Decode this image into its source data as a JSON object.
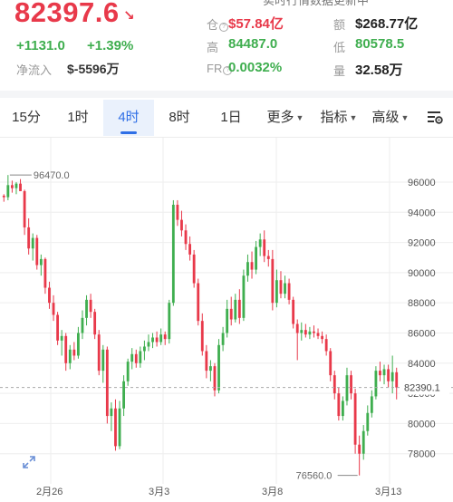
{
  "header": {
    "price": "82397.6",
    "price_arrow": "↘",
    "change_abs": "+1131.0",
    "change_pct": "+1.39%",
    "net_flow_label": "净流入",
    "net_flow_value": "$-5596万",
    "top_cut_text": "实时行情数据更新中",
    "stats": [
      {
        "label": "仓",
        "value": "$57.84亿",
        "color": "red"
      },
      {
        "label": "额",
        "value": "$268.77亿",
        "color": "dark"
      },
      {
        "label": "高",
        "value": "84487.0",
        "color": "green"
      },
      {
        "label": "低",
        "value": "80578.5",
        "color": "green"
      },
      {
        "label": "FR",
        "value": "0.0032%",
        "color": "green"
      },
      {
        "label": "量",
        "value": "32.58万",
        "color": "dark"
      }
    ]
  },
  "tabs": [
    {
      "label": "15分",
      "active": false
    },
    {
      "label": "1时",
      "active": false
    },
    {
      "label": "4时",
      "active": true
    },
    {
      "label": "8时",
      "active": false
    },
    {
      "label": "1日",
      "active": false
    },
    {
      "label": "更多",
      "active": false,
      "dropdown": true
    },
    {
      "label": "指标",
      "active": false,
      "dropdown": true
    },
    {
      "label": "高级",
      "active": false,
      "dropdown": true
    }
  ],
  "settings_icon": "chart-settings-icon",
  "expand_icon": "expand-icon",
  "colors": {
    "up": "#3fae4f",
    "down": "#e8394a",
    "accent": "#2f6fe6",
    "grid": "#eeeeee"
  },
  "chart_data": {
    "type": "candlestick",
    "y_ticks": [
      "96000",
      "94000",
      "92000",
      "90000",
      "88000",
      "86000",
      "84000",
      "82000",
      "80000",
      "78000"
    ],
    "x_labels": [
      "2月26",
      "3月3",
      "3月8",
      "3月13"
    ],
    "ylim": [
      76000,
      97500
    ],
    "current_price_label": "82390.1",
    "current_price": 82390.1,
    "high_marker": {
      "label": "96470.0",
      "value": 96470.0
    },
    "low_marker": {
      "label": "76560.0",
      "value": 76560.0
    },
    "candles": [
      [
        95100,
        95200,
        94700,
        95000
      ],
      [
        95000,
        96470,
        94800,
        95800
      ],
      [
        95800,
        96100,
        95300,
        95600
      ],
      [
        95600,
        96000,
        95200,
        95900
      ],
      [
        95900,
        96200,
        95500,
        95400
      ],
      [
        95400,
        95500,
        92500,
        93000
      ],
      [
        93000,
        93600,
        91200,
        91600
      ],
      [
        91600,
        92600,
        90800,
        92300
      ],
      [
        92300,
        92500,
        90200,
        90500
      ],
      [
        90500,
        91200,
        89800,
        90900
      ],
      [
        90900,
        91000,
        88600,
        89000
      ],
      [
        89000,
        89400,
        87600,
        88000
      ],
      [
        88000,
        88500,
        86800,
        87200
      ],
      [
        87200,
        87400,
        85200,
        85500
      ],
      [
        85500,
        86200,
        84500,
        85800
      ],
      [
        85800,
        86000,
        83500,
        84000
      ],
      [
        84000,
        85200,
        83600,
        84900
      ],
      [
        84900,
        85400,
        84200,
        84500
      ],
      [
        84500,
        86400,
        84300,
        86000
      ],
      [
        86000,
        87500,
        85600,
        87000
      ],
      [
        87000,
        88500,
        86500,
        88200
      ],
      [
        88200,
        88600,
        87000,
        87400
      ],
      [
        87400,
        87600,
        85600,
        85900
      ],
      [
        85900,
        86200,
        83200,
        83500
      ],
      [
        83500,
        85200,
        82700,
        84900
      ],
      [
        84900,
        85100,
        80000,
        80500
      ],
      [
        80500,
        81400,
        79500,
        81000
      ],
      [
        81000,
        81600,
        78200,
        78500
      ],
      [
        78500,
        81500,
        78300,
        81000
      ],
      [
        81000,
        83200,
        80500,
        82800
      ],
      [
        82800,
        84300,
        82500,
        84100
      ],
      [
        84100,
        85000,
        83600,
        84600
      ],
      [
        84600,
        84900,
        83700,
        84000
      ],
      [
        84000,
        85100,
        83700,
        84800
      ],
      [
        84800,
        85500,
        84200,
        85100
      ],
      [
        85100,
        85900,
        84800,
        85400
      ],
      [
        85400,
        86000,
        85000,
        85700
      ],
      [
        85700,
        86100,
        85100,
        85400
      ],
      [
        85400,
        86300,
        85200,
        85900
      ],
      [
        85900,
        86100,
        85200,
        85600
      ],
      [
        85600,
        88200,
        85300,
        88000
      ],
      [
        88000,
        94800,
        87800,
        94500
      ],
      [
        94500,
        94800,
        93100,
        93500
      ],
      [
        93500,
        94100,
        92400,
        92800
      ],
      [
        92800,
        93200,
        91500,
        91900
      ],
      [
        91900,
        92400,
        90800,
        91200
      ],
      [
        91200,
        91500,
        89000,
        89300
      ],
      [
        89300,
        89600,
        86500,
        86800
      ],
      [
        86800,
        87300,
        84500,
        84800
      ],
      [
        84800,
        85200,
        83000,
        83500
      ],
      [
        83500,
        84200,
        82800,
        83800
      ],
      [
        83800,
        84000,
        81800,
        82200
      ],
      [
        82200,
        85600,
        82000,
        85200
      ],
      [
        85200,
        86400,
        84800,
        86000
      ],
      [
        86000,
        88200,
        85700,
        87600
      ],
      [
        87600,
        88400,
        86500,
        86900
      ],
      [
        86900,
        88600,
        86700,
        88200
      ],
      [
        88200,
        88900,
        86600,
        87000
      ],
      [
        87000,
        90200,
        86800,
        89800
      ],
      [
        89800,
        91200,
        89400,
        90700
      ],
      [
        90700,
        91400,
        89600,
        90200
      ],
      [
        90200,
        92100,
        89900,
        91700
      ],
      [
        91700,
        92600,
        91100,
        92200
      ],
      [
        92200,
        92800,
        90700,
        91100
      ],
      [
        91100,
        91500,
        90400,
        90900
      ],
      [
        90900,
        91500,
        87500,
        88000
      ],
      [
        88000,
        90200,
        87700,
        89500
      ],
      [
        89500,
        90100,
        88300,
        88600
      ],
      [
        88600,
        89800,
        88300,
        89300
      ],
      [
        89300,
        89600,
        87900,
        88200
      ],
      [
        88200,
        88400,
        86300,
        86600
      ],
      [
        86600,
        86900,
        84200,
        86000
      ],
      [
        86000,
        86700,
        85500,
        86200
      ],
      [
        86200,
        86600,
        85700,
        85900
      ],
      [
        85900,
        86400,
        85600,
        86100
      ],
      [
        86100,
        86500,
        85700,
        86000
      ],
      [
        86000,
        86300,
        85600,
        85800
      ],
      [
        85800,
        86100,
        85300,
        85600
      ],
      [
        85600,
        85900,
        84500,
        84800
      ],
      [
        84800,
        85000,
        82800,
        83200
      ],
      [
        83200,
        83500,
        81600,
        82000
      ],
      [
        82000,
        82400,
        80200,
        80500
      ],
      [
        80500,
        81800,
        80200,
        81500
      ],
      [
        81500,
        83700,
        81200,
        83200
      ],
      [
        83200,
        83500,
        81600,
        82000
      ],
      [
        82000,
        82300,
        78000,
        78600
      ],
      [
        78600,
        79200,
        76560,
        78000
      ],
      [
        78000,
        79900,
        77600,
        79500
      ],
      [
        79500,
        81200,
        79200,
        80700
      ],
      [
        80700,
        82200,
        80400,
        81800
      ],
      [
        81800,
        83800,
        81600,
        83500
      ],
      [
        83500,
        84100,
        82800,
        83200
      ],
      [
        83200,
        83900,
        82600,
        83600
      ],
      [
        83600,
        83900,
        82400,
        82800
      ],
      [
        82800,
        84500,
        82000,
        83400
      ],
      [
        83400,
        83700,
        81600,
        82390
      ]
    ]
  }
}
